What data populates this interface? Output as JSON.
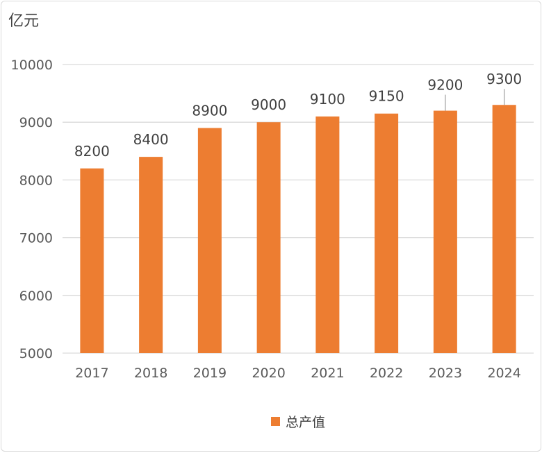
{
  "chart_data": {
    "type": "bar",
    "unit_label": "亿元",
    "categories": [
      "2017",
      "2018",
      "2019",
      "2020",
      "2021",
      "2022",
      "2023",
      "2024"
    ],
    "series": [
      {
        "name": "总产值",
        "values": [
          8200,
          8400,
          8900,
          9000,
          9100,
          9150,
          9200,
          9300
        ],
        "color": "#ED7D31"
      }
    ],
    "data_labels": [
      "8200",
      "8400",
      "8900",
      "9000",
      "9100",
      "9150",
      "9200",
      "9300"
    ],
    "y_ticks": [
      "5000",
      "6000",
      "7000",
      "8000",
      "9000",
      "10000"
    ],
    "ylim": [
      5000,
      10000
    ],
    "grid": true,
    "legend_position": "bottom",
    "leader_lines": [
      false,
      false,
      false,
      false,
      false,
      false,
      true,
      true
    ]
  },
  "colors": {
    "bar": "#ED7D31",
    "grid": "#d9d9d9",
    "text": "#404040"
  }
}
